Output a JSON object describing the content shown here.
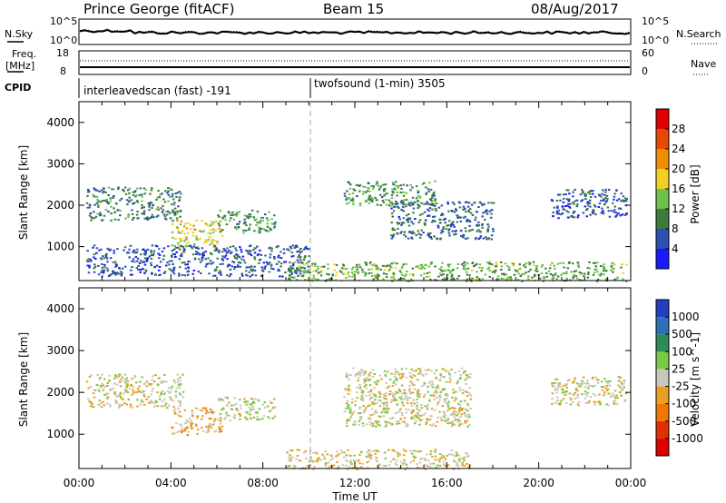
{
  "header": {
    "station": "Prince George (fitACF)",
    "beam": "Beam 15",
    "date": "08/Aug/2017"
  },
  "left_labels": {
    "nsky": "N.Sky",
    "freq": "Freq.",
    "freq_unit": "[MHz]",
    "cpid": "CPID"
  },
  "right_labels": {
    "nsearch": "N.Search",
    "nave": "Nave"
  },
  "noise_axis": {
    "left_top": "10^5",
    "left_bot": "10^0",
    "right_top": "10^5",
    "right_bot": "10^0"
  },
  "freq_axis": {
    "left_top": "18",
    "left_bot": "8",
    "right_top": "60",
    "right_bot": "0"
  },
  "cpid_entries": [
    {
      "label": "interleavedscan (fast) -191",
      "start": "00:00"
    },
    {
      "label": "twofsound (1-min) 3505",
      "start": "10:00"
    }
  ],
  "xaxis": {
    "label": "Time UT",
    "ticks": [
      "00:00",
      "04:00",
      "08:00",
      "12:00",
      "16:00",
      "20:00",
      "00:00"
    ]
  },
  "power_panel": {
    "ylabel": "Slant Range [km]",
    "yticks": [
      "1000",
      "2000",
      "3000",
      "4000"
    ],
    "cbar_label": "Power [dB]",
    "cbar_ticks": [
      "4",
      "8",
      "12",
      "16",
      "20",
      "24",
      "28"
    ]
  },
  "velocity_panel": {
    "ylabel": "Slant Range [km]",
    "yticks": [
      "1000",
      "2000",
      "3000",
      "4000"
    ],
    "cbar_label": "Velocity [m s^-1]",
    "cbar_ticks": [
      "1000",
      "500",
      "100",
      "25",
      "-25",
      "-100",
      "-500",
      "-1000"
    ]
  },
  "colors": {
    "power_scale": [
      "#1a1aff",
      "#2d4fb0",
      "#3c7d3c",
      "#6cc24a",
      "#f0d020",
      "#f08c00",
      "#e64a00",
      "#e00000"
    ],
    "velocity_scale": [
      "#2040c0",
      "#2f6fb8",
      "#2e8b57",
      "#7ac943",
      "#c8c8c0",
      "#e8a020",
      "#f07800",
      "#e03000",
      "#e00000"
    ]
  },
  "chart_data": [
    {
      "type": "heatmap",
      "title": "Power",
      "xlabel": "Time UT",
      "ylabel": "Slant Range [km]",
      "xlim": [
        "00:00",
        "24:00"
      ],
      "ylim": [
        180,
        4500
      ],
      "colorbar": {
        "label": "Power [dB]",
        "range": [
          0,
          30
        ]
      },
      "regions": [
        {
          "t_start": 0.3,
          "t_end": 4.5,
          "r_min": 1650,
          "r_max": 2450,
          "value": 9
        },
        {
          "t_start": 4.0,
          "t_end": 6.2,
          "r_min": 1000,
          "r_max": 1650,
          "value": 16
        },
        {
          "t_start": 6.0,
          "t_end": 8.5,
          "r_min": 1350,
          "r_max": 1900,
          "value": 10
        },
        {
          "t_start": 0.3,
          "t_end": 10.0,
          "r_min": 300,
          "r_max": 1050,
          "value": 6
        },
        {
          "t_start": 9.0,
          "t_end": 23.8,
          "r_min": 180,
          "r_max": 650,
          "value": 12
        },
        {
          "t_start": 11.5,
          "t_end": 15.5,
          "r_min": 2000,
          "r_max": 2600,
          "value": 10
        },
        {
          "t_start": 13.5,
          "t_end": 18.0,
          "r_min": 1200,
          "r_max": 2100,
          "value": 7
        },
        {
          "t_start": 20.5,
          "t_end": 23.8,
          "r_min": 1700,
          "r_max": 2400,
          "value": 6
        }
      ]
    },
    {
      "type": "heatmap",
      "title": "Velocity",
      "xlabel": "Time UT",
      "ylabel": "Slant Range [km]",
      "xlim": [
        "00:00",
        "24:00"
      ],
      "ylim": [
        180,
        4500
      ],
      "colorbar": {
        "label": "Velocity [m s^-1]",
        "range": [
          -1000,
          1000
        ]
      },
      "regions": [
        {
          "t_start": 0.3,
          "t_end": 4.5,
          "r_min": 1650,
          "r_max": 2450,
          "value": 0
        },
        {
          "t_start": 4.0,
          "t_end": 6.2,
          "r_min": 1000,
          "r_max": 1650,
          "value": -150
        },
        {
          "t_start": 6.0,
          "t_end": 8.5,
          "r_min": 1350,
          "r_max": 1900,
          "value": 60
        },
        {
          "t_start": 9.0,
          "t_end": 17.0,
          "r_min": 180,
          "r_max": 650,
          "value": -80
        },
        {
          "t_start": 11.5,
          "t_end": 17.0,
          "r_min": 1200,
          "r_max": 2600,
          "value": 0
        },
        {
          "t_start": 20.5,
          "t_end": 23.8,
          "r_min": 1700,
          "r_max": 2400,
          "value": 0
        }
      ]
    }
  ]
}
